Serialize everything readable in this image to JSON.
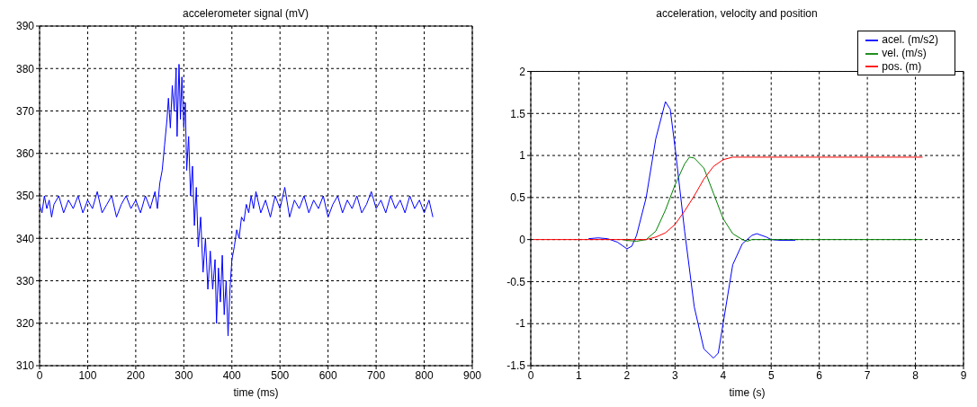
{
  "chart_data": [
    {
      "type": "line",
      "title": "accelerometer signal (mV)",
      "xlabel": "time (ms)",
      "xlim": [
        0,
        900
      ],
      "xticks": [
        0,
        100,
        200,
        300,
        400,
        500,
        600,
        700,
        800,
        900
      ],
      "ylim": [
        310,
        390
      ],
      "yticks": [
        310,
        320,
        330,
        340,
        350,
        360,
        370,
        380,
        390
      ],
      "grid": true,
      "series": [
        {
          "color": "#0000ff",
          "x": [
            0,
            5,
            10,
            15,
            20,
            25,
            30,
            40,
            50,
            60,
            70,
            80,
            90,
            100,
            110,
            120,
            130,
            140,
            150,
            160,
            170,
            180,
            190,
            200,
            210,
            220,
            230,
            240,
            245,
            250,
            255,
            260,
            265,
            268,
            272,
            276,
            280,
            284,
            286,
            290,
            293,
            296,
            300,
            303,
            306,
            310,
            314,
            318,
            322,
            326,
            330,
            335,
            340,
            345,
            350,
            355,
            360,
            365,
            368,
            372,
            376,
            380,
            384,
            388,
            392,
            396,
            400,
            405,
            410,
            415,
            420,
            425,
            430,
            435,
            440,
            445,
            450,
            460,
            470,
            480,
            490,
            500,
            510,
            520,
            530,
            540,
            550,
            560,
            570,
            580,
            590,
            600,
            610,
            620,
            630,
            640,
            650,
            660,
            670,
            680,
            690,
            700,
            710,
            720,
            730,
            740,
            750,
            760,
            770,
            780,
            790,
            800,
            810,
            818
          ],
          "values": [
            348,
            346,
            350,
            347,
            349,
            345,
            348,
            350,
            346,
            349,
            347,
            350,
            346,
            349,
            347,
            351,
            346,
            348,
            350,
            345,
            348,
            350,
            347,
            349,
            346,
            350,
            347,
            351,
            347,
            353,
            356,
            362,
            368,
            373,
            366,
            376,
            370,
            380,
            364,
            381,
            368,
            378,
            366,
            372,
            356,
            364,
            350,
            357,
            343,
            352,
            338,
            345,
            332,
            340,
            328,
            337,
            328,
            335,
            320,
            333,
            325,
            336,
            322,
            330,
            317,
            328,
            335,
            338,
            342,
            340,
            345,
            344,
            348,
            346,
            350,
            347,
            351,
            346,
            349,
            345,
            350,
            347,
            352,
            345,
            349,
            347,
            350,
            346,
            349,
            347,
            350,
            345,
            348,
            350,
            346,
            349,
            347,
            350,
            346,
            348,
            351,
            347,
            349,
            346,
            350,
            347,
            349,
            346,
            350,
            347,
            349,
            346,
            349,
            345
          ]
        }
      ]
    },
    {
      "type": "line",
      "title": "acceleration, velocity and position",
      "xlabel": "time (s)",
      "xlim": [
        0,
        9
      ],
      "xticks": [
        0,
        1,
        2,
        3,
        4,
        5,
        6,
        7,
        8,
        9
      ],
      "ylim": [
        -1.5,
        2
      ],
      "yticks": [
        -1.5,
        -1,
        -0.5,
        0,
        0.5,
        1,
        1.5,
        2
      ],
      "grid": true,
      "legend": "top right",
      "series": [
        {
          "name": "acel. (m/s2)",
          "color": "#0000ff",
          "x": [
            1.2,
            1.4,
            1.6,
            1.8,
            2.0,
            2.1,
            2.2,
            2.4,
            2.6,
            2.8,
            2.9,
            3.0,
            3.2,
            3.4,
            3.6,
            3.8,
            3.9,
            4.0,
            4.2,
            4.4,
            4.6,
            4.7,
            4.9,
            5.0,
            5.2,
            5.5
          ],
          "values": [
            0.01,
            0.02,
            0.01,
            -0.03,
            -0.11,
            -0.08,
            0.05,
            0.5,
            1.2,
            1.64,
            1.55,
            1.1,
            0.1,
            -0.8,
            -1.3,
            -1.41,
            -1.35,
            -1.0,
            -0.3,
            -0.05,
            0.05,
            0.07,
            0.03,
            0.0,
            -0.01,
            -0.01
          ]
        },
        {
          "name": "vel. (m/s)",
          "color": "#008000",
          "x": [
            1.9,
            2.0,
            2.2,
            2.4,
            2.6,
            2.8,
            3.0,
            3.2,
            3.3,
            3.4,
            3.6,
            3.8,
            4.0,
            4.2,
            4.4,
            4.5,
            4.6,
            8.15
          ],
          "values": [
            0,
            -0.01,
            -0.02,
            0,
            0.1,
            0.35,
            0.65,
            0.9,
            0.98,
            0.97,
            0.85,
            0.55,
            0.25,
            0.07,
            0,
            -0.02,
            0,
            0
          ]
        },
        {
          "name": "pos. (m)",
          "color": "#ff0000",
          "x": [
            0.05,
            2.0,
            2.4,
            2.6,
            2.8,
            3.0,
            3.2,
            3.4,
            3.6,
            3.8,
            4.0,
            4.2,
            4.4,
            8.15
          ],
          "values": [
            0,
            0,
            0,
            0.03,
            0.08,
            0.18,
            0.34,
            0.52,
            0.72,
            0.87,
            0.95,
            0.98,
            0.98,
            0.98
          ]
        }
      ]
    }
  ]
}
